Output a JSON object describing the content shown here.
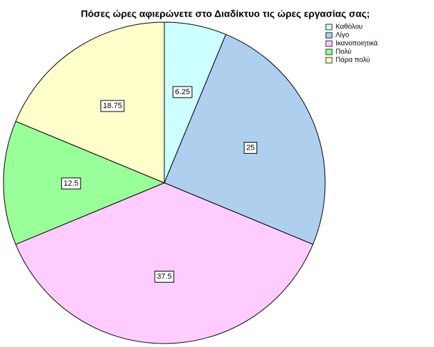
{
  "chart_data": {
    "type": "pie",
    "title": "Πόσες ώρες αφιερώνετε στο Διαδίκτυο τις ώρες εργασίας σας;",
    "categories": [
      "Καθόλου",
      "Λίγο",
      "Ικανοποιητικά",
      "Πολύ",
      "Πάρα πολύ"
    ],
    "values": [
      6.25,
      25,
      37.5,
      12.5,
      18.75
    ],
    "colors": [
      "#ccffff",
      "#aecfee",
      "#ffccff",
      "#99ff99",
      "#ffffcc"
    ],
    "legend": "top-right"
  }
}
